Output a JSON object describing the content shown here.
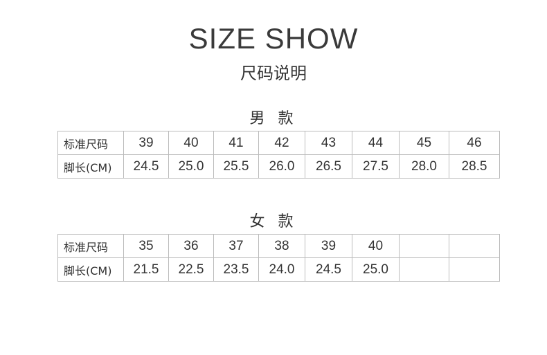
{
  "title": "SIZE SHOW",
  "subtitle": "尺码说明",
  "men": {
    "heading": "男 款",
    "row1_label": "标准尺码",
    "row2_label": "脚长(CM)",
    "sizes": [
      "39",
      "40",
      "41",
      "42",
      "43",
      "44",
      "45",
      "46"
    ],
    "lengths": [
      "24.5",
      "25.0",
      "25.5",
      "26.0",
      "26.5",
      "27.5",
      "28.0",
      "28.5"
    ]
  },
  "women": {
    "heading": "女 款",
    "row1_label": "标准尺码",
    "row2_label": "脚长(CM)",
    "sizes": [
      "35",
      "36",
      "37",
      "38",
      "39",
      "40",
      "",
      ""
    ],
    "lengths": [
      "21.5",
      "22.5",
      "23.5",
      "24.0",
      "24.5",
      "25.0",
      "",
      ""
    ]
  }
}
